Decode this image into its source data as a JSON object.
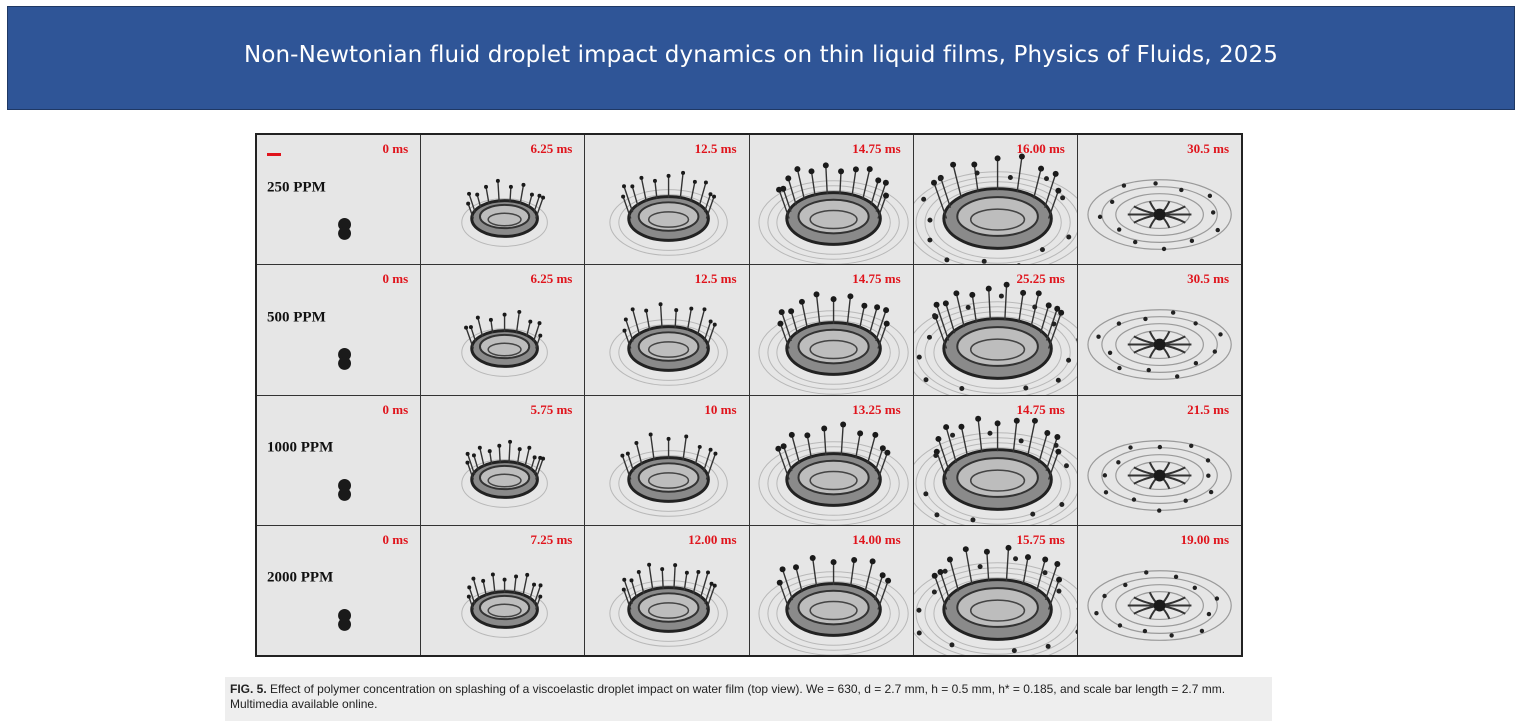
{
  "banner": {
    "title": "Non-Newtonian fluid droplet impact dynamics on thin liquid films, Physics of Fluids, 2025"
  },
  "figure": {
    "rows": [
      {
        "label": "250 PPM",
        "times": [
          "0 ms",
          "6.25 ms",
          "12.5 ms",
          "14.75 ms",
          "16.00 ms",
          "30.5 ms"
        ]
      },
      {
        "label": "500 PPM",
        "times": [
          "0 ms",
          "6.25 ms",
          "12.5 ms",
          "14.75 ms",
          "25.25 ms",
          "30.5 ms"
        ]
      },
      {
        "label": "1000 PPM",
        "times": [
          "0 ms",
          "5.75 ms",
          "10 ms",
          "13.25 ms",
          "14.75 ms",
          "21.5 ms"
        ]
      },
      {
        "label": "2000 PPM",
        "times": [
          "0 ms",
          "7.25 ms",
          "12.00 ms",
          "14.00 ms",
          "15.75 ms",
          "19.00 ms"
        ]
      }
    ]
  },
  "caption": {
    "fig_label": "FIG. 5.",
    "text": "Effect of polymer concentration on splashing of a viscoelastic droplet impact on water film (top view). We = 630, d = 2.7 mm, h = 0.5 mm, h* = 0.185, and scale bar length = 2.7 mm. Multimedia available online."
  }
}
